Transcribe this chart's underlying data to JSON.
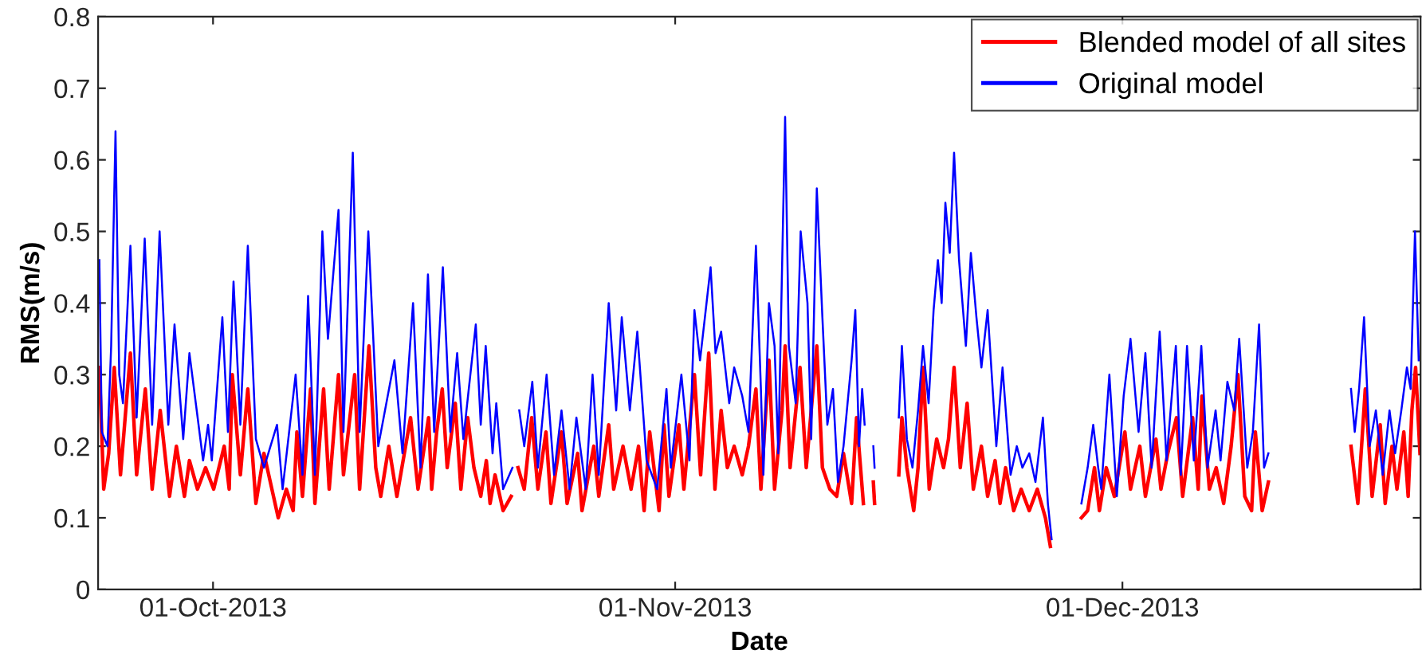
{
  "chart_data": {
    "type": "line",
    "xlabel": "Date",
    "ylabel": "RMS(m/s)",
    "xlim": [
      "2013-09-23T07:00",
      "2013-12-21T00:00"
    ],
    "xticks": [
      {
        "value": "2013-10-01",
        "label": "01-Oct-2013"
      },
      {
        "value": "2013-11-01",
        "label": "01-Nov-2013"
      },
      {
        "value": "2013-12-01",
        "label": "01-Dec-2013"
      }
    ],
    "ylim": [
      0,
      0.8
    ],
    "yticks": [
      0,
      0.1,
      0.2,
      0.3,
      0.4,
      0.5,
      0.6,
      0.7,
      0.8
    ],
    "grid": false,
    "legend": "top right",
    "marker": "none",
    "line_style": "solid",
    "series": [
      {
        "name": "Blended model of all sites",
        "color": "#ff0000",
        "x": [
          "2013-09-23T09:00",
          "2013-09-23T16:00",
          "2013-09-24T00:00",
          "2013-09-24T09:00",
          "2013-09-24T19:00",
          "2013-09-25T11:00",
          "2013-09-25T21:00",
          "2013-09-26T11:00",
          "2013-09-26T22:00",
          "2013-09-27T11:00",
          "2013-09-28T02:00",
          "2013-09-28T13:00",
          "2013-09-29T02:00",
          "2013-09-29T10:00",
          "2013-09-29T23:00",
          "2013-09-30T12:00",
          "2013-10-01T01:00",
          "2013-10-01T18:00",
          "2013-10-02T02:00",
          "2013-10-02T07:00",
          "2013-10-02T20:00",
          "2013-10-03T08:00",
          "2013-10-03T21:00",
          "2013-10-04T10:00",
          "2013-10-05T09:00",
          "2013-10-05T22:00",
          "2013-10-06T09:00",
          "2013-10-06T15:00",
          "2013-10-07T00:00",
          "2013-10-07T13:00",
          "2013-10-07T20:00",
          "2013-10-08T10:00",
          "2013-10-08T19:00",
          "2013-10-09T10:00",
          "2013-10-09T18:00",
          "2013-10-10T12:00",
          "2013-10-10T20:00",
          "2013-10-11T11:00",
          "2013-10-11T22:00",
          "2013-10-12T06:00",
          "2013-10-12T19:00",
          "2013-10-13T08:00",
          "2013-10-14T06:00",
          "2013-10-14T18:00",
          "2013-10-15T11:00",
          "2013-10-15T16:00",
          "2013-10-16T00:00",
          "2013-10-16T09:00",
          "2013-10-16T17:00",
          "2013-10-17T06:00",
          "2013-10-17T15:00",
          "2013-10-18T02:00",
          "2013-10-18T12:00",
          "2013-10-18T23:00",
          "2013-10-19T08:00",
          "2013-10-19T14:00",
          "2013-10-19T22:00",
          "2013-10-20T11:00",
          "2013-10-21T00:00",
          "2013-10-21T06:00",
          "2013-10-21T11:00",
          "2013-10-21T21:00",
          "2013-10-22T09:00",
          "2013-10-22T19:00",
          "2013-10-23T08:00",
          "2013-10-23T16:00",
          "2013-10-24T09:00",
          "2013-10-24T18:00",
          "2013-10-25T11:00",
          "2013-10-25T18:00",
          "2013-10-26T13:00",
          "2013-10-26T21:00",
          "2013-10-27T13:00",
          "2013-10-27T21:00",
          "2013-10-28T12:00",
          "2013-10-29T01:00",
          "2013-10-29T13:00",
          "2013-10-29T22:00",
          "2013-10-30T07:00",
          "2013-10-30T22:00",
          "2013-10-31T06:00",
          "2013-10-31T14:00",
          "2013-11-01T06:00",
          "2013-11-01T14:00",
          "2013-11-02T07:00",
          "2013-11-02T17:00",
          "2013-11-03T06:00",
          "2013-11-03T16:00",
          "2013-11-04T02:00",
          "2013-11-04T12:00",
          "2013-11-04T23:00",
          "2013-11-05T12:00",
          "2013-11-05T22:00",
          "2013-11-06T10:00",
          "2013-11-06T18:00",
          "2013-11-07T07:00",
          "2013-11-07T16:00",
          "2013-11-08T04:00",
          "2013-11-08T09:00",
          "2013-11-08T17:00",
          "2013-11-09T09:00",
          "2013-11-09T19:00",
          "2013-11-10T12:00",
          "2013-11-10T21:00",
          "2013-11-11T09:00",
          "2013-11-11T20:00",
          "2013-11-12T07:00",
          "2013-11-12T20:00",
          "2013-11-13T04:00",
          "2013-11-13T15:00",
          "2013-11-13T23:00",
          "2013-11-14T07:00",
          "2013-11-14T09:00",
          "2013-11-15T00:00",
          "2013-11-16T00:00",
          "2013-11-16T05:00",
          "2013-11-16T13:00",
          "2013-11-17T00:00",
          "2013-11-17T07:00",
          "2013-11-17T15:00",
          "2013-11-18T01:00",
          "2013-11-18T13:00",
          "2013-11-19T00:00",
          "2013-11-19T08:00",
          "2013-11-19T17:00",
          "2013-11-20T03:00",
          "2013-11-20T14:00",
          "2013-11-21T00:00",
          "2013-11-21T13:00",
          "2013-11-21T23:00",
          "2013-11-22T11:00",
          "2013-11-22T19:00",
          "2013-11-23T04:00",
          "2013-11-23T17:00",
          "2013-11-24T05:00",
          "2013-11-24T18:00",
          "2013-11-25T07:00",
          "2013-11-25T20:00",
          "2013-11-26T04:00",
          "2013-11-27T00:00",
          "2013-11-28T06:00",
          "2013-11-28T16:00",
          "2013-11-29T03:00",
          "2013-11-29T11:00",
          "2013-11-29T22:00",
          "2013-11-30T11:00",
          "2013-12-01T04:00",
          "2013-12-01T13:00",
          "2013-12-02T04:00",
          "2013-12-02T13:00",
          "2013-12-03T06:00",
          "2013-12-03T14:00",
          "2013-12-04T01:00",
          "2013-12-04T15:00",
          "2013-12-05T01:00",
          "2013-12-05T17:00",
          "2013-12-06T02:00",
          "2013-12-06T08:00",
          "2013-12-06T20:00",
          "2013-12-07T07:00",
          "2013-12-07T19:00",
          "2013-12-08T07:00",
          "2013-12-08T18:00",
          "2013-12-09T05:00",
          "2013-12-09T16:00",
          "2013-12-09T22:00",
          "2013-12-10T09:00",
          "2013-12-10T19:00",
          "2013-12-13T12:00",
          "2013-12-16T08:00",
          "2013-12-16T19:00",
          "2013-12-17T07:00",
          "2013-12-17T18:00",
          "2013-12-18T07:00",
          "2013-12-18T15:00",
          "2013-12-19T02:00",
          "2013-12-19T10:00",
          "2013-12-19T21:00",
          "2013-12-20T04:00",
          "2013-12-20T10:00",
          "2013-12-20T16:00",
          "2013-12-20T23:00"
        ],
        "values": [
          0.31,
          0.14,
          0.19,
          0.31,
          0.16,
          0.33,
          0.16,
          0.28,
          0.14,
          0.25,
          0.13,
          0.2,
          0.13,
          0.18,
          0.14,
          0.17,
          0.14,
          0.2,
          0.14,
          0.3,
          0.16,
          0.28,
          0.12,
          0.19,
          0.1,
          0.14,
          0.11,
          0.22,
          0.13,
          0.28,
          0.12,
          0.28,
          0.14,
          0.3,
          0.16,
          0.3,
          0.14,
          0.34,
          0.17,
          0.13,
          0.2,
          0.13,
          0.24,
          0.14,
          0.24,
          0.14,
          0.22,
          0.28,
          0.17,
          0.26,
          0.14,
          0.24,
          0.17,
          0.13,
          0.18,
          0.12,
          0.16,
          0.11,
          0.13,
          null,
          0.17,
          0.14,
          0.24,
          0.14,
          0.22,
          0.12,
          0.22,
          0.12,
          0.19,
          0.11,
          0.2,
          0.13,
          0.23,
          0.14,
          0.2,
          0.14,
          0.2,
          0.11,
          0.22,
          0.11,
          0.23,
          0.13,
          0.23,
          0.14,
          0.3,
          0.16,
          0.33,
          0.14,
          0.25,
          0.17,
          0.2,
          0.16,
          0.2,
          0.28,
          0.14,
          0.32,
          0.14,
          0.25,
          0.34,
          0.17,
          0.31,
          0.17,
          0.34,
          0.17,
          0.14,
          0.13,
          0.19,
          0.12,
          0.24,
          0.12,
          null,
          0.15,
          0.12,
          null,
          0.16,
          0.24,
          0.17,
          0.11,
          0.17,
          0.31,
          0.14,
          0.21,
          0.17,
          0.21,
          0.31,
          0.17,
          0.26,
          0.14,
          0.2,
          0.13,
          0.18,
          0.12,
          0.17,
          0.11,
          0.14,
          0.11,
          0.14,
          0.1,
          0.06,
          null,
          0.1,
          0.11,
          0.17,
          0.11,
          0.17,
          0.13,
          0.22,
          0.14,
          0.2,
          0.13,
          0.21,
          0.14,
          0.19,
          0.24,
          0.13,
          0.24,
          0.14,
          0.27,
          0.14,
          0.17,
          0.12,
          0.2,
          0.3,
          0.13,
          0.11,
          0.22,
          0.11,
          0.15,
          null,
          0.2,
          0.12,
          0.28,
          0.13,
          0.23,
          0.12,
          0.2,
          0.14,
          0.22,
          0.13,
          0.25,
          0.31,
          0.19
        ]
      },
      {
        "name": "Original model",
        "color": "#0000ff",
        "x": [
          "2013-09-23T09:00",
          "2013-09-23T13:00",
          "2013-09-23T22:00",
          "2013-09-24T04:00",
          "2013-09-24T11:00",
          "2013-09-24T17:00",
          "2013-09-24T23:00",
          "2013-09-25T11:00",
          "2013-09-25T21:00",
          "2013-09-26T10:00",
          "2013-09-26T22:00",
          "2013-09-27T10:00",
          "2013-09-28T00:00",
          "2013-09-28T10:00",
          "2013-09-29T00:00",
          "2013-09-29T10:00",
          "2013-09-30T08:00",
          "2013-09-30T16:00",
          "2013-09-30T22:00",
          "2013-10-01T15:00",
          "2013-10-02T00:00",
          "2013-10-02T09:00",
          "2013-10-02T20:00",
          "2013-10-03T08:00",
          "2013-10-03T21:00",
          "2013-10-04T10:00",
          "2013-10-05T07:00",
          "2013-10-05T16:00",
          "2013-10-06T13:00",
          "2013-10-07T00:00",
          "2013-10-07T09:00",
          "2013-10-07T20:00",
          "2013-10-08T08:00",
          "2013-10-08T17:00",
          "2013-10-09T10:00",
          "2013-10-09T18:00",
          "2013-10-10T09:00",
          "2013-10-10T20:00",
          "2013-10-11T10:00",
          "2013-10-12T02:00",
          "2013-10-13T04:00",
          "2013-10-13T17:00",
          "2013-10-14T10:00",
          "2013-10-14T22:00",
          "2013-10-15T10:00",
          "2013-10-15T20:00",
          "2013-10-16T10:00",
          "2013-10-16T22:00",
          "2013-10-17T09:00",
          "2013-10-17T19:00",
          "2013-10-18T15:00",
          "2013-10-18T23:00",
          "2013-10-19T07:00",
          "2013-10-19T18:00",
          "2013-10-20T00:00",
          "2013-10-20T11:00",
          "2013-10-21T02:00",
          "2013-10-21T07:00",
          "2013-10-21T13:00",
          "2013-10-21T21:00",
          "2013-10-22T10:00",
          "2013-10-22T19:00",
          "2013-10-23T09:00",
          "2013-10-23T21:00",
          "2013-10-24T09:00",
          "2013-10-24T22:00",
          "2013-10-25T09:00",
          "2013-10-26T00:00",
          "2013-10-26T11:00",
          "2013-10-26T21:00",
          "2013-10-27T13:00",
          "2013-10-28T01:00",
          "2013-10-28T10:00",
          "2013-10-28T23:00",
          "2013-10-29T11:00",
          "2013-10-30T02:00",
          "2013-10-30T19:00",
          "2013-10-31T10:00",
          "2013-10-31T17:00",
          "2013-11-01T10:00",
          "2013-11-01T23:00",
          "2013-11-02T07:00",
          "2013-11-02T16:00",
          "2013-11-03T09:00",
          "2013-11-03T17:00",
          "2013-11-04T02:00",
          "2013-11-04T15:00",
          "2013-11-04T23:00",
          "2013-11-05T12:00",
          "2013-11-05T22:00",
          "2013-11-06T10:00",
          "2013-11-06T18:00",
          "2013-11-06T22:00",
          "2013-11-07T07:00",
          "2013-11-07T16:00",
          "2013-11-07T22:00",
          "2013-11-08T09:00",
          "2013-11-08T15:00",
          "2013-11-09T02:00",
          "2013-11-09T10:00",
          "2013-11-09T21:00",
          "2013-11-10T03:00",
          "2013-11-10T12:00",
          "2013-11-10T21:00",
          "2013-11-11T05:00",
          "2013-11-11T14:00",
          "2013-11-11T22:00",
          "2013-11-12T07:00",
          "2013-11-12T20:00",
          "2013-11-13T02:00",
          "2013-11-13T08:00",
          "2013-11-13T13:00",
          "2013-11-13T17:00",
          "2013-11-14T00:00",
          "2013-11-14T07:00",
          "2013-11-14T09:00",
          "2013-11-15T00:00",
          "2013-11-16T00:00",
          "2013-11-16T05:00",
          "2013-11-16T13:00",
          "2013-11-16T22:00",
          "2013-11-17T07:00",
          "2013-11-17T15:00",
          "2013-11-18T00:00",
          "2013-11-18T08:00",
          "2013-11-18T15:00",
          "2013-11-18T21:00",
          "2013-11-19T03:00",
          "2013-11-19T10:00",
          "2013-11-19T17:00",
          "2013-11-20T01:00",
          "2013-11-20T12:00",
          "2013-11-20T20:00",
          "2013-11-21T05:00",
          "2013-11-21T13:00",
          "2013-11-21T23:00",
          "2013-11-22T13:00",
          "2013-11-22T23:00",
          "2013-11-23T12:00",
          "2013-11-23T22:00",
          "2013-11-24T07:00",
          "2013-11-24T18:00",
          "2013-11-25T04:00",
          "2013-11-25T16:00",
          "2013-11-26T00:00",
          "2013-11-26T06:00",
          "2013-11-27T00:00",
          "2013-11-28T06:00",
          "2013-11-28T16:00",
          "2013-11-29T01:00",
          "2013-11-29T09:00",
          "2013-11-29T14:00",
          "2013-11-30T03:00",
          "2013-11-30T15:00",
          "2013-12-01T02:00",
          "2013-12-01T13:00",
          "2013-12-02T02:00",
          "2013-12-02T13:00",
          "2013-12-02T23:00",
          "2013-12-03T12:00",
          "2013-12-03T23:00",
          "2013-12-04T14:00",
          "2013-12-04T22:00",
          "2013-12-05T08:00",
          "2013-12-05T19:00",
          "2013-12-06T07:00",
          "2013-12-06T17:00",
          "2013-12-07T06:00",
          "2013-12-07T14:00",
          "2013-12-08T01:00",
          "2013-12-08T12:00",
          "2013-12-08T20:00",
          "2013-12-09T09:00",
          "2013-12-09T18:00",
          "2013-12-10T04:00",
          "2013-12-10T12:00",
          "2013-12-10T19:00",
          "2013-12-13T12:00",
          "2013-12-16T08:00",
          "2013-12-16T14:00",
          "2013-12-16T21:00",
          "2013-12-17T05:00",
          "2013-12-17T14:00",
          "2013-12-18T00:00",
          "2013-12-18T11:00",
          "2013-12-18T22:00",
          "2013-12-19T07:00",
          "2013-12-19T17:00",
          "2013-12-20T02:00",
          "2013-12-20T08:00",
          "2013-12-20T15:00",
          "2013-12-20T21:00"
        ],
        "values": [
          0.46,
          0.22,
          0.2,
          0.34,
          0.64,
          0.3,
          0.26,
          0.48,
          0.24,
          0.49,
          0.23,
          0.5,
          0.23,
          0.37,
          0.21,
          0.33,
          0.18,
          0.23,
          0.18,
          0.38,
          0.22,
          0.43,
          0.23,
          0.48,
          0.21,
          0.17,
          0.23,
          0.14,
          0.3,
          0.16,
          0.41,
          0.16,
          0.5,
          0.35,
          0.53,
          0.22,
          0.61,
          0.22,
          0.5,
          0.2,
          0.32,
          0.19,
          0.4,
          0.17,
          0.44,
          0.22,
          0.45,
          0.22,
          0.33,
          0.21,
          0.37,
          0.23,
          0.34,
          0.19,
          0.26,
          0.14,
          0.17,
          null,
          0.25,
          0.2,
          0.29,
          0.17,
          0.3,
          0.16,
          0.25,
          0.14,
          0.24,
          0.14,
          0.3,
          0.16,
          0.4,
          0.25,
          0.38,
          0.25,
          0.36,
          0.18,
          0.14,
          0.28,
          0.17,
          0.3,
          0.18,
          0.39,
          0.32,
          0.45,
          0.33,
          0.36,
          0.26,
          0.31,
          0.27,
          0.22,
          0.48,
          0.28,
          0.16,
          0.4,
          0.34,
          0.19,
          0.66,
          0.34,
          0.26,
          0.5,
          0.4,
          0.21,
          0.56,
          0.38,
          0.23,
          0.28,
          0.15,
          0.2,
          0.32,
          0.39,
          0.2,
          0.28,
          0.23,
          null,
          0.2,
          0.17,
          null,
          0.24,
          0.34,
          0.21,
          0.17,
          0.25,
          0.34,
          0.26,
          0.39,
          0.46,
          0.4,
          0.54,
          0.47,
          0.61,
          0.46,
          0.34,
          0.47,
          0.38,
          0.31,
          0.39,
          0.2,
          0.31,
          0.16,
          0.2,
          0.17,
          0.19,
          0.15,
          0.24,
          0.12,
          0.07,
          null,
          0.12,
          0.17,
          0.23,
          0.17,
          0.14,
          0.3,
          0.13,
          0.27,
          0.35,
          0.22,
          0.33,
          0.17,
          0.36,
          0.18,
          0.34,
          0.16,
          0.34,
          0.18,
          0.34,
          0.17,
          0.25,
          0.18,
          0.29,
          0.25,
          0.35,
          0.17,
          0.22,
          0.37,
          0.17,
          0.19,
          null,
          0.28,
          0.22,
          0.28,
          0.38,
          0.2,
          0.25,
          0.16,
          0.25,
          0.19,
          0.25,
          0.31,
          0.28,
          0.5,
          0.32
        ]
      }
    ]
  }
}
